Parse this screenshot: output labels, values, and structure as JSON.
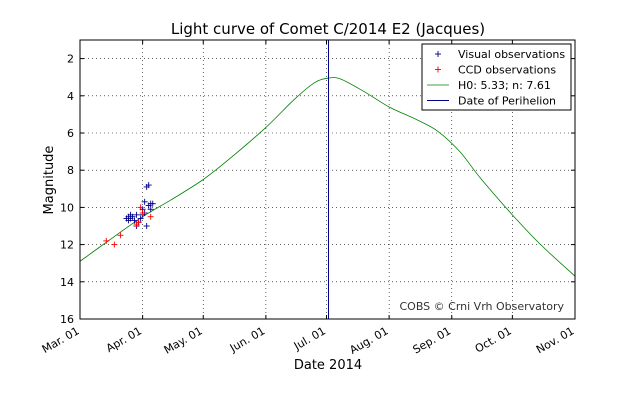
{
  "chart_data": {
    "type": "line",
    "title": "Light curve of Comet C/2014 E2 (Jacques)",
    "xlabel": "Date 2014",
    "ylabel": "Magnitude",
    "xlim": [
      "2014-03-01",
      "2014-11-01"
    ],
    "ylim": [
      16,
      1
    ],
    "y_inverted": true,
    "grid": true,
    "x_ticks": [
      {
        "date": "2014-03-01",
        "label": "Mar. 01"
      },
      {
        "date": "2014-04-01",
        "label": "Apr. 01"
      },
      {
        "date": "2014-05-01",
        "label": "May. 01"
      },
      {
        "date": "2014-06-01",
        "label": "Jun. 01"
      },
      {
        "date": "2014-07-01",
        "label": "Jul. 01"
      },
      {
        "date": "2014-08-01",
        "label": "Aug. 01"
      },
      {
        "date": "2014-09-01",
        "label": "Sep. 01"
      },
      {
        "date": "2014-10-01",
        "label": "Oct. 01"
      },
      {
        "date": "2014-11-01",
        "label": "Nov. 01"
      }
    ],
    "y_ticks": [
      2,
      4,
      6,
      8,
      10,
      12,
      14,
      16
    ],
    "legend_position": "top-right",
    "series": [
      {
        "name": "Visual observations",
        "kind": "scatter",
        "marker": "+",
        "color": "#00008b",
        "points": [
          {
            "date": "2014-03-24",
            "mag": 10.6
          },
          {
            "date": "2014-03-25",
            "mag": 10.5
          },
          {
            "date": "2014-03-25",
            "mag": 10.7
          },
          {
            "date": "2014-03-26",
            "mag": 10.4
          },
          {
            "date": "2014-03-26",
            "mag": 10.6
          },
          {
            "date": "2014-03-27",
            "mag": 10.5
          },
          {
            "date": "2014-03-28",
            "mag": 10.7
          },
          {
            "date": "2014-03-29",
            "mag": 11.0
          },
          {
            "date": "2014-03-29",
            "mag": 10.4
          },
          {
            "date": "2014-03-30",
            "mag": 10.8
          },
          {
            "date": "2014-03-31",
            "mag": 10.6
          },
          {
            "date": "2014-04-01",
            "mag": 10.4
          },
          {
            "date": "2014-04-01",
            "mag": 10.1
          },
          {
            "date": "2014-04-02",
            "mag": 10.3
          },
          {
            "date": "2014-04-02",
            "mag": 9.7
          },
          {
            "date": "2014-04-03",
            "mag": 8.9
          },
          {
            "date": "2014-04-03",
            "mag": 11.0
          },
          {
            "date": "2014-04-04",
            "mag": 8.8
          },
          {
            "date": "2014-04-04",
            "mag": 9.9
          },
          {
            "date": "2014-04-05",
            "mag": 10.1
          },
          {
            "date": "2014-04-05",
            "mag": 9.8
          },
          {
            "date": "2014-04-06",
            "mag": 9.8
          }
        ]
      },
      {
        "name": "CCD observations",
        "kind": "scatter",
        "marker": "+",
        "color": "#ff0000",
        "points": [
          {
            "date": "2014-03-14",
            "mag": 11.8
          },
          {
            "date": "2014-03-18",
            "mag": 12.0
          },
          {
            "date": "2014-03-21",
            "mag": 11.5
          },
          {
            "date": "2014-03-29",
            "mag": 10.9
          },
          {
            "date": "2014-03-30",
            "mag": 10.8
          },
          {
            "date": "2014-03-31",
            "mag": 10.0
          },
          {
            "date": "2014-04-01",
            "mag": 10.3
          },
          {
            "date": "2014-04-05",
            "mag": 10.5
          }
        ]
      },
      {
        "name": "H0: 5.33; n: 7.61",
        "kind": "line",
        "color": "#008000",
        "points": [
          {
            "date": "2014-03-01",
            "mag": 12.9
          },
          {
            "date": "2014-03-15",
            "mag": 11.8
          },
          {
            "date": "2014-04-01",
            "mag": 10.5
          },
          {
            "date": "2014-04-15",
            "mag": 9.6
          },
          {
            "date": "2014-05-01",
            "mag": 8.5
          },
          {
            "date": "2014-05-15",
            "mag": 7.3
          },
          {
            "date": "2014-06-01",
            "mag": 5.7
          },
          {
            "date": "2014-06-15",
            "mag": 4.2
          },
          {
            "date": "2014-06-25",
            "mag": 3.3
          },
          {
            "date": "2014-07-02",
            "mag": 3.05
          },
          {
            "date": "2014-07-08",
            "mag": 3.1
          },
          {
            "date": "2014-07-20",
            "mag": 3.8
          },
          {
            "date": "2014-08-01",
            "mag": 4.6
          },
          {
            "date": "2014-08-15",
            "mag": 5.3
          },
          {
            "date": "2014-08-25",
            "mag": 5.9
          },
          {
            "date": "2014-09-05",
            "mag": 7.0
          },
          {
            "date": "2014-09-15",
            "mag": 8.4
          },
          {
            "date": "2014-10-01",
            "mag": 10.4
          },
          {
            "date": "2014-10-15",
            "mag": 12.0
          },
          {
            "date": "2014-11-01",
            "mag": 13.7
          }
        ]
      },
      {
        "name": "Date of Perihelion",
        "kind": "vline",
        "color": "#00008b",
        "date": "2014-07-02"
      }
    ],
    "annotation": "COBS © Crni Vrh Observatory"
  }
}
